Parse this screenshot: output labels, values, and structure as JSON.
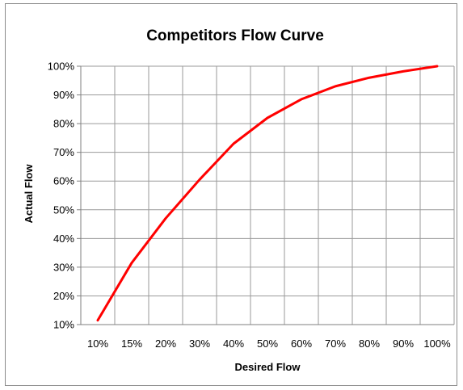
{
  "chart_data": {
    "type": "line",
    "title": "Competitors Flow Curve",
    "xlabel": "Desired Flow",
    "ylabel": "Actual Flow",
    "x_categories": [
      "10%",
      "15%",
      "20%",
      "30%",
      "40%",
      "50%",
      "60%",
      "70%",
      "80%",
      "90%",
      "100%"
    ],
    "y_ticks": [
      "10%",
      "20%",
      "30%",
      "40%",
      "50%",
      "60%",
      "70%",
      "80%",
      "90%",
      "100%"
    ],
    "ylim": [
      10,
      100
    ],
    "grid": true,
    "legend": "none",
    "series": [
      {
        "color": "#ff0000",
        "points": [
          {
            "x": 0.0,
            "y": 11.5
          },
          {
            "x": 1.0,
            "y": 31.5
          },
          {
            "x": 2.0,
            "y": 47.0
          },
          {
            "x": 3.0,
            "y": 60.5
          },
          {
            "x": 4.0,
            "y": 73.0
          },
          {
            "x": 5.0,
            "y": 82.0
          },
          {
            "x": 6.0,
            "y": 88.5
          },
          {
            "x": 7.0,
            "y": 93.0
          },
          {
            "x": 8.0,
            "y": 96.0
          },
          {
            "x": 9.0,
            "y": 98.2
          },
          {
            "x": 10.0,
            "y": 100.0
          }
        ]
      }
    ]
  }
}
